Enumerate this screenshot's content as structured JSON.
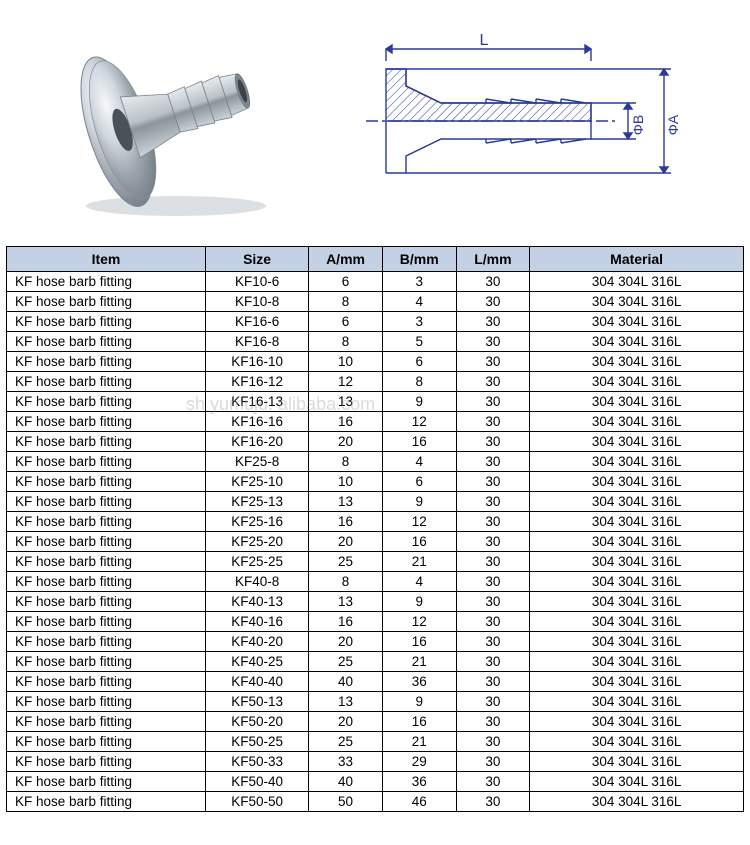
{
  "diagram": {
    "dimension_labels": {
      "L": "L",
      "phiA": "ΦA",
      "phiB": "ΦB"
    },
    "line_color": "#2a3a9a",
    "line_width": 1.4,
    "hatch_color": "#2a3a9a"
  },
  "watermark_text": "sh         yumuju.     alibaba.com",
  "table": {
    "header_bg": "#c3d1e5",
    "border_color": "#000000",
    "columns": [
      "Item",
      "Size",
      "A/mm",
      "B/mm",
      "L/mm",
      "Material"
    ],
    "rows": [
      [
        "KF hose barb fitting",
        "KF10-6",
        "6",
        "3",
        "30",
        "304 304L 316L"
      ],
      [
        "KF hose barb fitting",
        "KF10-8",
        "8",
        "4",
        "30",
        "304 304L 316L"
      ],
      [
        "KF hose barb fitting",
        "KF16-6",
        "6",
        "3",
        "30",
        "304 304L 316L"
      ],
      [
        "KF hose barb fitting",
        "KF16-8",
        "8",
        "5",
        "30",
        "304 304L 316L"
      ],
      [
        "KF hose barb fitting",
        "KF16-10",
        "10",
        "6",
        "30",
        "304 304L 316L"
      ],
      [
        "KF hose barb fitting",
        "KF16-12",
        "12",
        "8",
        "30",
        "304 304L 316L"
      ],
      [
        "KF hose barb fitting",
        "KF16-13",
        "13",
        "9",
        "30",
        "304 304L 316L"
      ],
      [
        "KF hose barb fitting",
        "KF16-16",
        "16",
        "12",
        "30",
        "304 304L 316L"
      ],
      [
        "KF hose barb fitting",
        "KF16-20",
        "20",
        "16",
        "30",
        "304 304L 316L"
      ],
      [
        "KF hose barb fitting",
        "KF25-8",
        "8",
        "4",
        "30",
        "304 304L 316L"
      ],
      [
        "KF hose barb fitting",
        "KF25-10",
        "10",
        "6",
        "30",
        "304 304L 316L"
      ],
      [
        "KF hose barb fitting",
        "KF25-13",
        "13",
        "9",
        "30",
        "304 304L 316L"
      ],
      [
        "KF hose barb fitting",
        "KF25-16",
        "16",
        "12",
        "30",
        "304 304L 316L"
      ],
      [
        "KF hose barb fitting",
        "KF25-20",
        "20",
        "16",
        "30",
        "304 304L 316L"
      ],
      [
        "KF hose barb fitting",
        "KF25-25",
        "25",
        "21",
        "30",
        "304 304L 316L"
      ],
      [
        "KF hose barb fitting",
        "KF40-8",
        "8",
        "4",
        "30",
        "304 304L 316L"
      ],
      [
        "KF hose barb fitting",
        "KF40-13",
        "13",
        "9",
        "30",
        "304 304L 316L"
      ],
      [
        "KF hose barb fitting",
        "KF40-16",
        "16",
        "12",
        "30",
        "304 304L 316L"
      ],
      [
        "KF hose barb fitting",
        "KF40-20",
        "20",
        "16",
        "30",
        "304 304L 316L"
      ],
      [
        "KF hose barb fitting",
        "KF40-25",
        "25",
        "21",
        "30",
        "304 304L 316L"
      ],
      [
        "KF hose barb fitting",
        "KF40-40",
        "40",
        "36",
        "30",
        "304 304L 316L"
      ],
      [
        "KF hose barb fitting",
        "KF50-13",
        "13",
        "9",
        "30",
        "304 304L 316L"
      ],
      [
        "KF hose barb fitting",
        "KF50-20",
        "20",
        "16",
        "30",
        "304 304L 316L"
      ],
      [
        "KF hose barb fitting",
        "KF50-25",
        "25",
        "21",
        "30",
        "304 304L 316L"
      ],
      [
        "KF hose barb fitting",
        "KF50-33",
        "33",
        "29",
        "30",
        "304 304L 316L"
      ],
      [
        "KF hose barb fitting",
        "KF50-40",
        "40",
        "36",
        "30",
        "304 304L 316L"
      ],
      [
        "KF hose barb fitting",
        "KF50-50",
        "50",
        "46",
        "30",
        "304 304L 316L"
      ]
    ]
  }
}
